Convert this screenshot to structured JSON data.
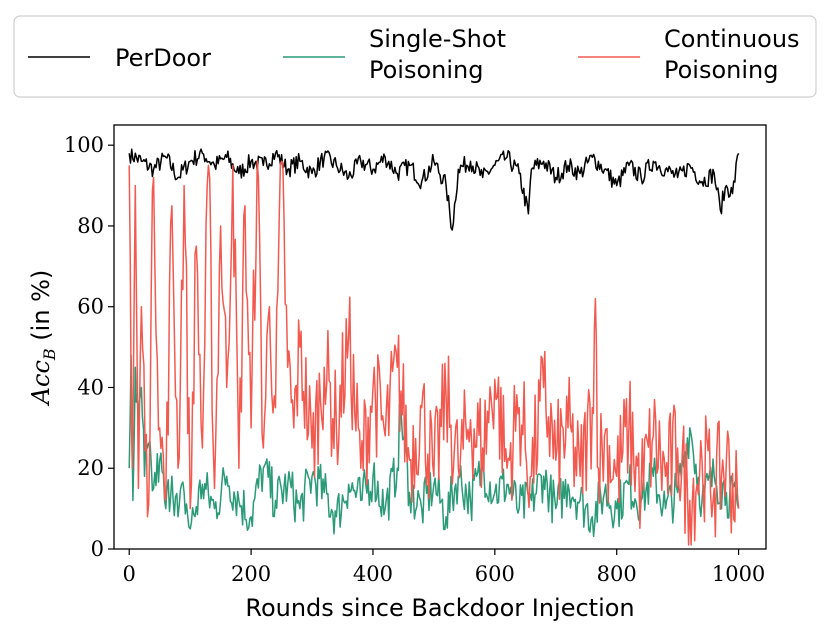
{
  "chart_data": {
    "type": "line",
    "title": "",
    "xlabel": "Rounds since Backdoor Injection",
    "ylabel": {
      "italic": "Acc",
      "subscript": "B",
      "rest": " (in %)"
    },
    "xlim": [
      -25,
      1045
    ],
    "ylim": [
      0,
      105
    ],
    "xticks": [
      0,
      200,
      400,
      600,
      800,
      1000
    ],
    "yticks": [
      0,
      20,
      40,
      60,
      80,
      100
    ],
    "grid": false,
    "legend_position": "top",
    "series": [
      {
        "name": "PerDoor",
        "color": "#000000",
        "x": [
          0,
          20,
          40,
          60,
          80,
          100,
          120,
          140,
          160,
          180,
          200,
          220,
          240,
          260,
          280,
          300,
          320,
          340,
          360,
          380,
          400,
          420,
          440,
          460,
          480,
          500,
          520,
          530,
          540,
          560,
          580,
          600,
          620,
          640,
          655,
          660,
          680,
          700,
          720,
          740,
          760,
          780,
          800,
          820,
          840,
          860,
          880,
          900,
          920,
          940,
          960,
          970,
          980,
          990,
          1000
        ],
        "y": [
          98,
          96,
          94,
          97,
          92,
          96,
          98,
          95,
          97,
          93,
          96,
          95,
          98,
          94,
          96,
          93,
          97,
          95,
          92,
          96,
          94,
          97,
          93,
          95,
          91,
          96,
          90,
          79,
          94,
          96,
          92,
          95,
          97,
          93,
          83,
          94,
          96,
          92,
          95,
          93,
          97,
          94,
          90,
          95,
          92,
          96,
          94,
          92,
          95,
          91,
          93,
          84,
          90,
          88,
          98
        ]
      },
      {
        "name": "Single-Shot Poisoning",
        "color": "#2a9a77",
        "x": [
          0,
          3,
          6,
          10,
          15,
          20,
          25,
          30,
          40,
          50,
          60,
          70,
          80,
          90,
          100,
          120,
          140,
          160,
          180,
          200,
          220,
          240,
          260,
          280,
          300,
          320,
          340,
          360,
          380,
          400,
          420,
          440,
          445,
          460,
          480,
          500,
          520,
          540,
          560,
          580,
          600,
          620,
          640,
          660,
          680,
          700,
          720,
          740,
          760,
          780,
          800,
          820,
          840,
          860,
          880,
          900,
          920,
          940,
          960,
          980,
          1000
        ],
        "y": [
          20,
          48,
          12,
          45,
          28,
          40,
          18,
          25,
          15,
          22,
          10,
          18,
          8,
          14,
          5,
          16,
          10,
          18,
          12,
          8,
          20,
          12,
          16,
          10,
          18,
          14,
          8,
          16,
          12,
          18,
          10,
          20,
          35,
          14,
          10,
          16,
          8,
          18,
          12,
          20,
          14,
          16,
          10,
          12,
          18,
          10,
          16,
          12,
          8,
          14,
          10,
          16,
          12,
          18,
          10,
          14,
          30,
          12,
          18,
          14,
          10
        ]
      },
      {
        "name": "Continuous Poisoning",
        "color": "#f25a50",
        "x": [
          0,
          5,
          10,
          15,
          20,
          30,
          40,
          50,
          60,
          70,
          80,
          90,
          100,
          110,
          120,
          130,
          140,
          150,
          160,
          170,
          180,
          190,
          200,
          210,
          220,
          230,
          240,
          250,
          260,
          270,
          280,
          300,
          320,
          340,
          360,
          380,
          400,
          420,
          440,
          460,
          480,
          500,
          520,
          540,
          560,
          580,
          600,
          620,
          640,
          660,
          680,
          700,
          720,
          740,
          760,
          765,
          770,
          780,
          800,
          820,
          840,
          860,
          880,
          900,
          920,
          940,
          960,
          980,
          1000
        ],
        "y": [
          95,
          20,
          90,
          15,
          60,
          8,
          92,
          30,
          12,
          85,
          20,
          90,
          10,
          75,
          25,
          95,
          15,
          80,
          40,
          95,
          20,
          85,
          30,
          96,
          25,
          60,
          35,
          96,
          45,
          30,
          50,
          25,
          45,
          30,
          52,
          20,
          40,
          28,
          45,
          22,
          35,
          18,
          38,
          20,
          32,
          25,
          42,
          20,
          35,
          18,
          40,
          22,
          30,
          18,
          35,
          62,
          20,
          28,
          18,
          30,
          15,
          28,
          18,
          25,
          12,
          22,
          15,
          22,
          10
        ]
      }
    ]
  }
}
